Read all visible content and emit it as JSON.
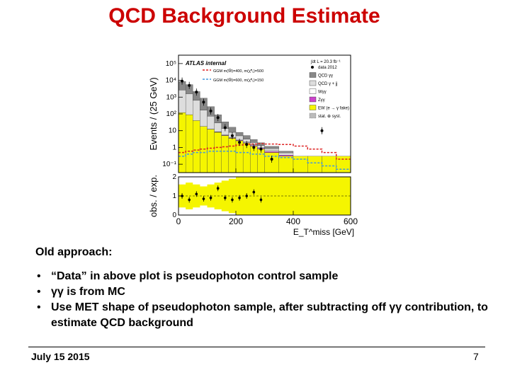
{
  "slide": {
    "title": "QCD Background Estimate",
    "approach_heading": "Old approach:",
    "bullets": [
      "“Data” in above plot is pseudophoton control sample",
      "γγ is from MC",
      "Use MET shape of pseudophoton sample, after subtracting off γγ contribution, to estimate QCD background"
    ],
    "bullet_marker": "•",
    "footer_date": "July 15 2015",
    "page_number": "7"
  },
  "chart_data": {
    "type": "bar",
    "atlas_label": "ATLAS internal",
    "lumi_label": "∫dt L = 20.3 fb⁻¹",
    "ylabel": "Events / (25 GeV)",
    "ratio_ylabel": "obs. / exp.",
    "xlabel": "E_T^miss [GeV]",
    "x_ticks": [
      "0",
      "200",
      "400",
      "600"
    ],
    "y_ticks": [
      "10⁻¹",
      "1",
      "10",
      "10²",
      "10³",
      "10⁴",
      "10⁵"
    ],
    "ratio_ticks": [
      "0",
      "1",
      "2"
    ],
    "xlim": [
      0,
      600
    ],
    "ylim_log10": [
      -1.5,
      5.5
    ],
    "ratio_ylim": [
      0,
      2
    ],
    "bin_edges": [
      0,
      25,
      50,
      75,
      100,
      125,
      150,
      175,
      200,
      225,
      250,
      275,
      300,
      350,
      400,
      450,
      500,
      550,
      600
    ],
    "stack": [
      {
        "name": "EW (e → γ fake)",
        "color": "#f5f500",
        "values": [
          120,
          90,
          40,
          18,
          12,
          8,
          5,
          3.5,
          2.5,
          1.8,
          1.2,
          0.8,
          0.5,
          0.3,
          0.3,
          0.3,
          0.3,
          0.3
        ]
      },
      {
        "name": "Zγγ",
        "color": "#cc44cc",
        "values": [
          0,
          0,
          0,
          0,
          0,
          0.3,
          0.3,
          0.2,
          0.2,
          0.15,
          0.12,
          0.1,
          0.08,
          0.05,
          0,
          0,
          0,
          0
        ]
      },
      {
        "name": "Wγγ",
        "color": "#ffffff",
        "values": [
          0,
          0,
          0,
          0,
          0.5,
          0.4,
          0.3,
          0.3,
          0.25,
          0.2,
          0.15,
          0.1,
          0.08,
          0.05,
          0,
          0,
          0,
          0
        ]
      },
      {
        "name": "QCD γ + jj",
        "color": "#dddddd",
        "values": [
          2500,
          1500,
          600,
          150,
          60,
          20,
          8,
          4,
          2,
          1,
          0.5,
          0.3,
          0.2,
          0.1,
          0,
          0,
          0,
          0
        ]
      },
      {
        "name": "QCD γγ",
        "color": "#888888",
        "values": [
          6000,
          4000,
          1500,
          700,
          200,
          60,
          20,
          8,
          3,
          2,
          1,
          0.6,
          0.3,
          0.1,
          0,
          0,
          0,
          0
        ]
      }
    ],
    "data_label": "data 2012",
    "data_points": [
      {
        "x": 12.5,
        "y": 9000
      },
      {
        "x": 37.5,
        "y": 5000
      },
      {
        "x": 62.5,
        "y": 2000
      },
      {
        "x": 87.5,
        "y": 500
      },
      {
        "x": 112.5,
        "y": 150
      },
      {
        "x": 137.5,
        "y": 60
      },
      {
        "x": 162.5,
        "y": 15
      },
      {
        "x": 187.5,
        "y": 5
      },
      {
        "x": 212.5,
        "y": 2
      },
      {
        "x": 237.5,
        "y": 1.5
      },
      {
        "x": 262.5,
        "y": 1
      },
      {
        "x": 287.5,
        "y": 0.8
      },
      {
        "x": 325,
        "y": 0.2
      },
      {
        "x": 500,
        "y": 10
      }
    ],
    "signals": [
      {
        "name": "GGM m(W̃)=400, m(χ̃⁰₁)=500",
        "color": "#dd2222",
        "values": [
          0.5,
          0.6,
          0.7,
          0.8,
          0.9,
          1.0,
          1.1,
          1.2,
          1.4,
          1.5,
          1.6,
          1.7,
          1.6,
          1.5,
          1.2,
          0.8,
          0.5,
          0.2
        ]
      },
      {
        "name": "GGM m(W̃)=600, m(χ̃⁰₁)=150",
        "color": "#4499dd",
        "values": [
          0.3,
          0.4,
          0.5,
          0.5,
          0.6,
          0.6,
          0.6,
          0.6,
          0.5,
          0.5,
          0.4,
          0.4,
          0.3,
          0.25,
          0.2,
          0.12,
          0.08,
          0.05
        ]
      }
    ],
    "syst_label": "stat. ⊕ syst.",
    "ratio_points": [
      {
        "x": 12.5,
        "y": 1.0
      },
      {
        "x": 37.5,
        "y": 0.8
      },
      {
        "x": 62.5,
        "y": 1.1
      },
      {
        "x": 87.5,
        "y": 0.85
      },
      {
        "x": 112.5,
        "y": 0.9
      },
      {
        "x": 137.5,
        "y": 1.4
      },
      {
        "x": 162.5,
        "y": 0.9
      },
      {
        "x": 187.5,
        "y": 0.8
      },
      {
        "x": 212.5,
        "y": 0.9
      },
      {
        "x": 237.5,
        "y": 1.0
      },
      {
        "x": 262.5,
        "y": 1.2
      },
      {
        "x": 287.5,
        "y": 0.8
      }
    ],
    "ratio_band": [
      0.6,
      0.7,
      0.6,
      0.5,
      0.6,
      0.7,
      0.8,
      0.9,
      1.0,
      1.1,
      1.2,
      1.3,
      1.4,
      1.5,
      1.6,
      1.5,
      1.3,
      1.1
    ],
    "ratio_fit_level": 1
  }
}
